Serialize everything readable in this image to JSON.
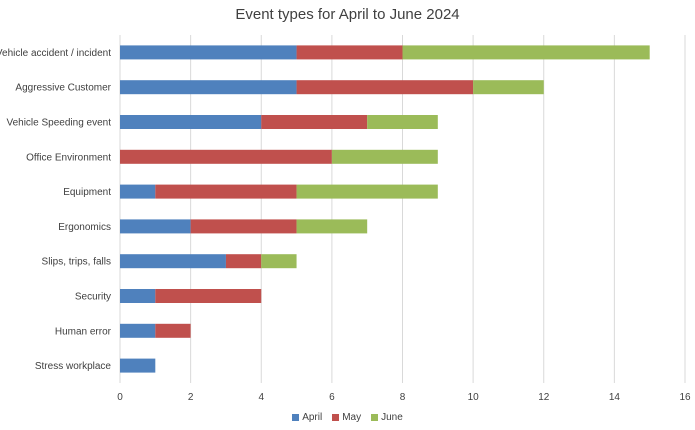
{
  "chart_data": {
    "type": "bar",
    "orientation": "horizontal",
    "stacked": true,
    "title": "Event types for April to June 2024",
    "xlabel": "",
    "ylabel": "",
    "xlim": [
      0,
      16
    ],
    "x_ticks": [
      "0",
      "2",
      "4",
      "6",
      "8",
      "10",
      "12",
      "14",
      "16"
    ],
    "grid": "vertical",
    "legend_position": "bottom",
    "categories": [
      "Vehicle accident / incident",
      "Aggressive Customer",
      "Vehicle Speeding event",
      "Office Environment",
      "Equipment",
      "Ergonomics",
      "Slips, trips, falls",
      "Security",
      "Human error",
      "Stress workplace"
    ],
    "series": [
      {
        "name": "April",
        "color": "#4F81BD",
        "values": [
          5,
          5,
          4,
          0,
          1,
          2,
          3,
          1,
          1,
          1
        ]
      },
      {
        "name": "May",
        "color": "#C0504D",
        "values": [
          3,
          5,
          3,
          6,
          4,
          3,
          1,
          3,
          1,
          0
        ]
      },
      {
        "name": "June",
        "color": "#9BBB59",
        "values": [
          7,
          2,
          2,
          3,
          4,
          2,
          1,
          0,
          0,
          0
        ]
      }
    ]
  }
}
